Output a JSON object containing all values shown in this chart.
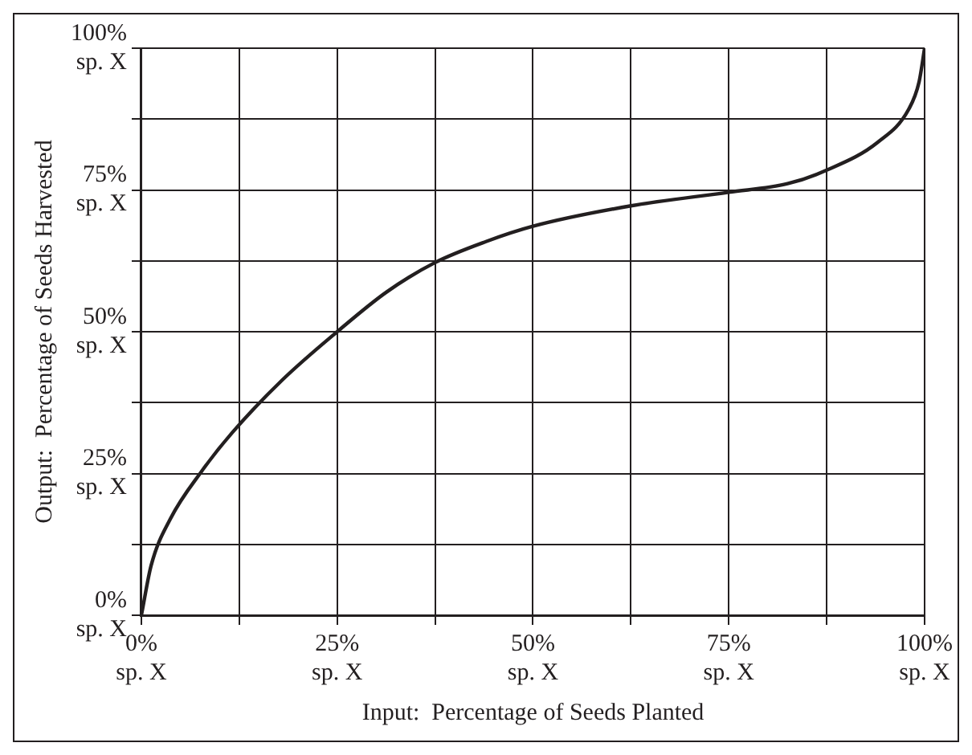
{
  "chart_data": {
    "type": "line",
    "xlabel": "Input:  Percentage of Seeds Planted",
    "ylabel": "Output:  Percentage of Seeds Harvested",
    "series": [
      {
        "color": "#231f20",
        "x": [
          0,
          1.25,
          3.7,
          7.7,
          11.6,
          18,
          25,
          31.3,
          37.5,
          44,
          50,
          62.5,
          75,
          82.5,
          87.5,
          94,
          98,
          99.3,
          100
        ],
        "values": [
          0,
          8.8,
          17,
          25.4,
          32.2,
          41.5,
          50,
          57,
          62.2,
          65.9,
          68.6,
          72.2,
          74.6,
          76.1,
          78.5,
          83.4,
          89.3,
          94.1,
          100
        ]
      }
    ],
    "xlim": [
      0,
      100
    ],
    "ylim": [
      0,
      100
    ],
    "xticks": [
      {
        "value": 0,
        "label": "0%\nsp. X"
      },
      {
        "value": 12.5,
        "label": null
      },
      {
        "value": 25,
        "label": "25%\nsp. X"
      },
      {
        "value": 37.5,
        "label": null
      },
      {
        "value": 50,
        "label": "50%\nsp. X"
      },
      {
        "value": 62.5,
        "label": null
      },
      {
        "value": 75,
        "label": "75%\nsp. X"
      },
      {
        "value": 87.5,
        "label": null
      },
      {
        "value": 100,
        "label": "100%\nsp. X"
      }
    ],
    "yticks": [
      {
        "value": 0,
        "label": "0%\nsp. X"
      },
      {
        "value": 12.5,
        "label": null
      },
      {
        "value": 25,
        "label": "25%\nsp. X"
      },
      {
        "value": 37.5,
        "label": null
      },
      {
        "value": 50,
        "label": "50%\nsp. X"
      },
      {
        "value": 62.5,
        "label": null
      },
      {
        "value": 75,
        "label": "75%\nsp. X"
      },
      {
        "value": 87.5,
        "label": null
      },
      {
        "value": 100,
        "label": "100%\nsp. X"
      }
    ],
    "grid": true,
    "legend": false,
    "marker": "none",
    "line_style": "solid"
  }
}
